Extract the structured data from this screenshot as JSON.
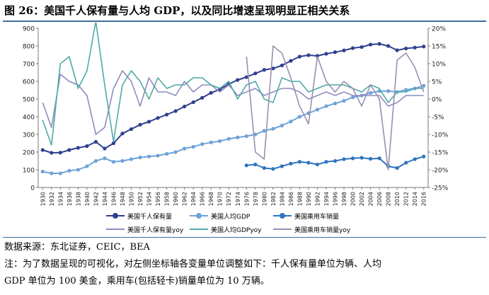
{
  "title": "图 26：美国千人保有量与人均 GDP，以及同比增速呈现明显正相关关系",
  "source": "数据来源：东北证券，CEIC，BEA",
  "note_line1": "注：为了数据呈现的可视化，对左侧坐标轴各变量单位调整如下：千人保有量单位为辆、人均",
  "note_line2": "GDP 单位为 100 美金，乘用车(包括轻卡)销量单位为 10 万辆。",
  "colors": {
    "ownership": "#2f3f8f",
    "gdp": "#6fa2d8",
    "sales": "#2e74c0",
    "ownership_yoy": "#8c8cc0",
    "gdp_yoy": "#4fa9a6",
    "sales_yoy": "#9a8fb0",
    "title_rule": "#3f6e9e"
  },
  "chart_data": {
    "type": "line",
    "x": [
      "1930",
      "1932",
      "1934",
      "1936",
      "1938",
      "1940",
      "1942",
      "1944",
      "1946",
      "1948",
      "1950",
      "1952",
      "1954",
      "1956",
      "1958",
      "1960",
      "1962",
      "1964",
      "1966",
      "1968",
      "1970",
      "1972",
      "1974",
      "1976",
      "1978",
      "1980",
      "1982",
      "1984",
      "1986",
      "1988",
      "1990",
      "1992",
      "1994",
      "1996",
      "1998",
      "2000",
      "2002",
      "2004",
      "2006",
      "2008",
      "2010",
      "2012",
      "2014",
      "2016"
    ],
    "left_axis": {
      "min": 0,
      "max": 900,
      "ticks": [
        "0",
        "100",
        "200",
        "300",
        "400",
        "500",
        "600",
        "700",
        "800",
        "900"
      ]
    },
    "right_axis": {
      "min": -25,
      "max": 20,
      "ticks": [
        "-25%",
        "-20%",
        "-15%",
        "-10%",
        "-5%",
        "0%",
        "5%",
        "10%",
        "15%",
        "20%"
      ]
    },
    "grid": false,
    "legend_position": "bottom",
    "series": [
      {
        "name": "美国千人保有量",
        "axis": "left",
        "marker": true,
        "values": [
          212,
          196,
          197,
          212,
          224,
          234,
          258,
          220,
          250,
          305,
          330,
          355,
          372,
          393,
          412,
          432,
          458,
          482,
          507,
          535,
          555,
          585,
          608,
          624,
          645,
          665,
          673,
          690,
          716,
          740,
          748,
          744,
          756,
          765,
          775,
          788,
          794,
          808,
          812,
          800,
          776,
          786,
          791,
          797
        ]
      },
      {
        "name": "美国人均GDP",
        "axis": "left",
        "marker": true,
        "values": [
          90,
          80,
          80,
          95,
          100,
          120,
          150,
          165,
          145,
          150,
          160,
          170,
          175,
          180,
          190,
          200,
          220,
          230,
          245,
          255,
          262,
          275,
          283,
          290,
          300,
          320,
          332,
          350,
          373,
          400,
          420,
          440,
          460,
          475,
          490,
          510,
          520,
          535,
          545,
          545,
          540,
          552,
          560,
          575
        ]
      },
      {
        "name": "美国乘用车销量",
        "axis": "left",
        "marker": true,
        "values": [
          null,
          null,
          null,
          null,
          null,
          null,
          null,
          null,
          null,
          null,
          null,
          null,
          null,
          null,
          null,
          null,
          null,
          null,
          null,
          null,
          null,
          null,
          null,
          125,
          130,
          110,
          105,
          120,
          135,
          145,
          140,
          130,
          145,
          150,
          160,
          165,
          168,
          162,
          165,
          120,
          110,
          140,
          160,
          175
        ]
      },
      {
        "name": "美国千人保有量yoy",
        "axis": "right",
        "marker": false,
        "values": [
          -1,
          -8,
          7,
          5,
          4,
          1,
          -10,
          -8,
          3,
          8,
          5,
          -2,
          6,
          2,
          2,
          1,
          5,
          2,
          4,
          4,
          2,
          4,
          1,
          2,
          3,
          1,
          2,
          3,
          3,
          2,
          0,
          1,
          2,
          1,
          2,
          1,
          1,
          1,
          1,
          -2,
          -1,
          1,
          1,
          1
        ]
      },
      {
        "name": "美国人均GDPyoy",
        "axis": "right",
        "marker": false,
        "values": [
          -6,
          -13,
          10,
          12,
          3,
          8,
          22,
          4,
          -12,
          4,
          8,
          5,
          0,
          6,
          3,
          4,
          4,
          6,
          6,
          4,
          3,
          5,
          0,
          4,
          5,
          0,
          -1,
          6,
          5,
          5,
          2,
          3,
          4,
          4,
          4,
          3,
          2,
          4,
          3,
          -1,
          2,
          2,
          3,
          3
        ]
      },
      {
        "name": "美国乘用车销量yoy",
        "axis": "right",
        "marker": false,
        "values": [
          null,
          null,
          null,
          null,
          null,
          null,
          null,
          null,
          null,
          null,
          null,
          null,
          null,
          null,
          null,
          null,
          null,
          null,
          null,
          null,
          null,
          null,
          null,
          12,
          -15,
          -17,
          15,
          13,
          6,
          -2,
          -7,
          12,
          5,
          2,
          5,
          3,
          -2,
          4,
          0,
          -20,
          11,
          13,
          9,
          2
        ]
      }
    ]
  }
}
